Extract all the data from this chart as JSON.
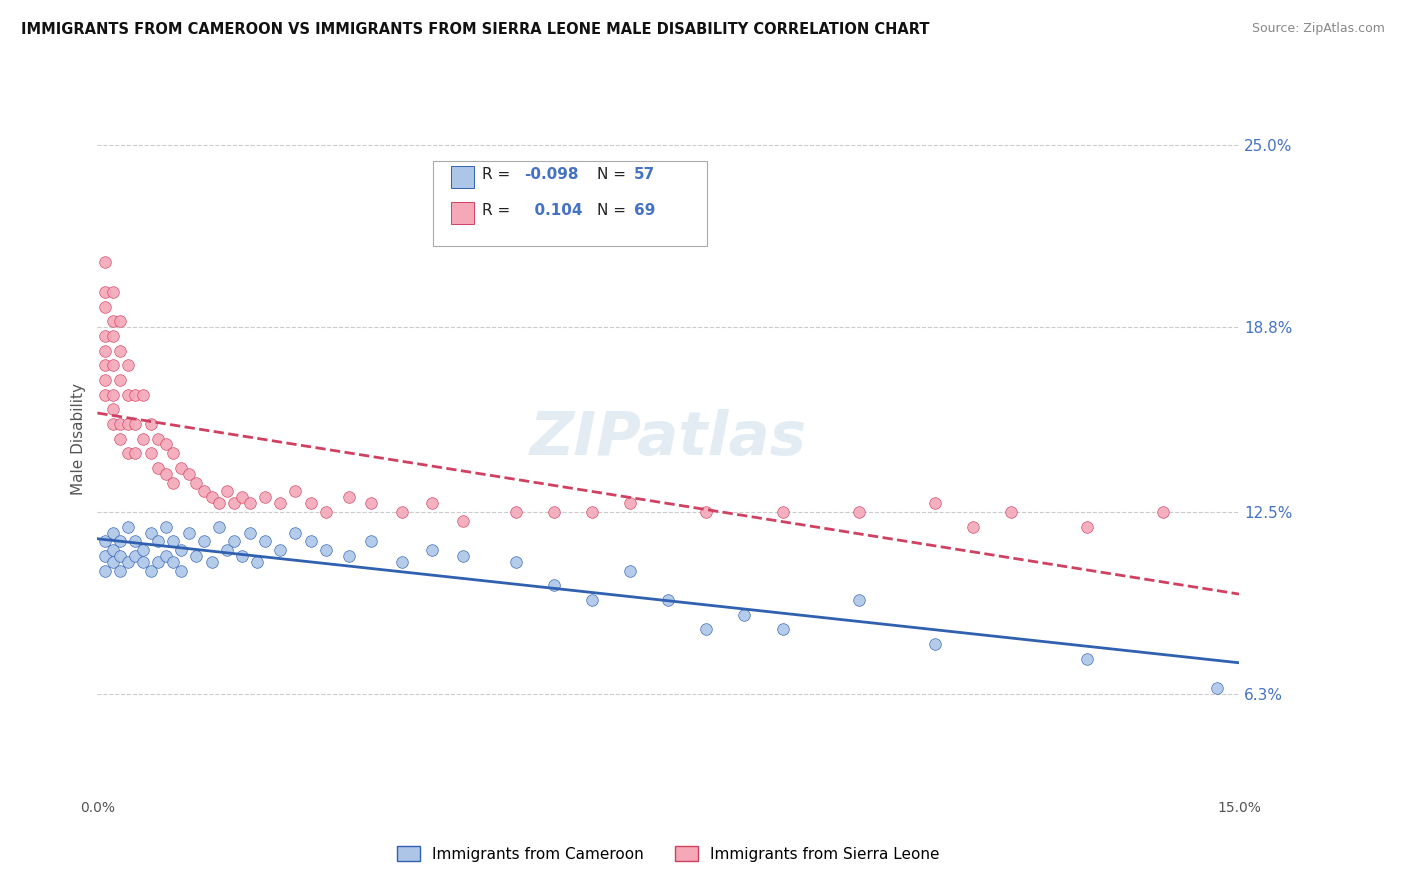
{
  "title": "IMMIGRANTS FROM CAMEROON VS IMMIGRANTS FROM SIERRA LEONE MALE DISABILITY CORRELATION CHART",
  "source": "Source: ZipAtlas.com",
  "ylabel": "Male Disability",
  "xlim": [
    0.0,
    0.15
  ],
  "ylim": [
    0.03,
    0.27
  ],
  "yticks": [
    0.063,
    0.125,
    0.188,
    0.25
  ],
  "ytick_labels": [
    "6.3%",
    "12.5%",
    "18.8%",
    "25.0%"
  ],
  "color_cameroon": "#adc6e8",
  "color_sierra": "#f4a8b8",
  "trendline_cameroon": "#3060b0",
  "trendline_sierra": "#d04060",
  "watermark": "ZIPatlas",
  "background_color": "#ffffff",
  "grid_color": "#cccccc",
  "label_cameroon": "Immigrants from Cameroon",
  "label_sierra": "Immigrants from Sierra Leone",
  "cameroon_x": [
    0.001,
    0.001,
    0.001,
    0.002,
    0.002,
    0.002,
    0.003,
    0.003,
    0.003,
    0.004,
    0.004,
    0.005,
    0.005,
    0.006,
    0.006,
    0.007,
    0.007,
    0.008,
    0.008,
    0.009,
    0.009,
    0.01,
    0.01,
    0.011,
    0.011,
    0.012,
    0.013,
    0.014,
    0.015,
    0.016,
    0.017,
    0.018,
    0.019,
    0.02,
    0.021,
    0.022,
    0.024,
    0.026,
    0.028,
    0.03,
    0.033,
    0.036,
    0.04,
    0.044,
    0.048,
    0.055,
    0.06,
    0.065,
    0.07,
    0.075,
    0.08,
    0.085,
    0.09,
    0.1,
    0.11,
    0.13,
    0.147
  ],
  "cameroon_y": [
    0.115,
    0.11,
    0.105,
    0.118,
    0.112,
    0.108,
    0.115,
    0.11,
    0.105,
    0.12,
    0.108,
    0.115,
    0.11,
    0.112,
    0.108,
    0.118,
    0.105,
    0.115,
    0.108,
    0.12,
    0.11,
    0.115,
    0.108,
    0.112,
    0.105,
    0.118,
    0.11,
    0.115,
    0.108,
    0.12,
    0.112,
    0.115,
    0.11,
    0.118,
    0.108,
    0.115,
    0.112,
    0.118,
    0.115,
    0.112,
    0.11,
    0.115,
    0.108,
    0.112,
    0.11,
    0.108,
    0.1,
    0.095,
    0.105,
    0.095,
    0.085,
    0.09,
    0.085,
    0.095,
    0.08,
    0.075,
    0.065
  ],
  "sierra_x": [
    0.001,
    0.001,
    0.001,
    0.001,
    0.001,
    0.001,
    0.001,
    0.001,
    0.002,
    0.002,
    0.002,
    0.002,
    0.002,
    0.002,
    0.002,
    0.003,
    0.003,
    0.003,
    0.003,
    0.003,
    0.004,
    0.004,
    0.004,
    0.004,
    0.005,
    0.005,
    0.005,
    0.006,
    0.006,
    0.007,
    0.007,
    0.008,
    0.008,
    0.009,
    0.009,
    0.01,
    0.01,
    0.011,
    0.012,
    0.013,
    0.014,
    0.015,
    0.016,
    0.017,
    0.018,
    0.019,
    0.02,
    0.022,
    0.024,
    0.026,
    0.028,
    0.03,
    0.033,
    0.036,
    0.04,
    0.044,
    0.048,
    0.055,
    0.06,
    0.065,
    0.07,
    0.08,
    0.09,
    0.1,
    0.11,
    0.115,
    0.12,
    0.13,
    0.14
  ],
  "sierra_y": [
    0.21,
    0.2,
    0.195,
    0.185,
    0.18,
    0.175,
    0.17,
    0.165,
    0.2,
    0.19,
    0.185,
    0.175,
    0.165,
    0.16,
    0.155,
    0.19,
    0.18,
    0.17,
    0.155,
    0.15,
    0.175,
    0.165,
    0.155,
    0.145,
    0.165,
    0.155,
    0.145,
    0.165,
    0.15,
    0.155,
    0.145,
    0.15,
    0.14,
    0.148,
    0.138,
    0.145,
    0.135,
    0.14,
    0.138,
    0.135,
    0.132,
    0.13,
    0.128,
    0.132,
    0.128,
    0.13,
    0.128,
    0.13,
    0.128,
    0.132,
    0.128,
    0.125,
    0.13,
    0.128,
    0.125,
    0.128,
    0.122,
    0.125,
    0.125,
    0.125,
    0.128,
    0.125,
    0.125,
    0.125,
    0.128,
    0.12,
    0.125,
    0.12,
    0.125
  ]
}
